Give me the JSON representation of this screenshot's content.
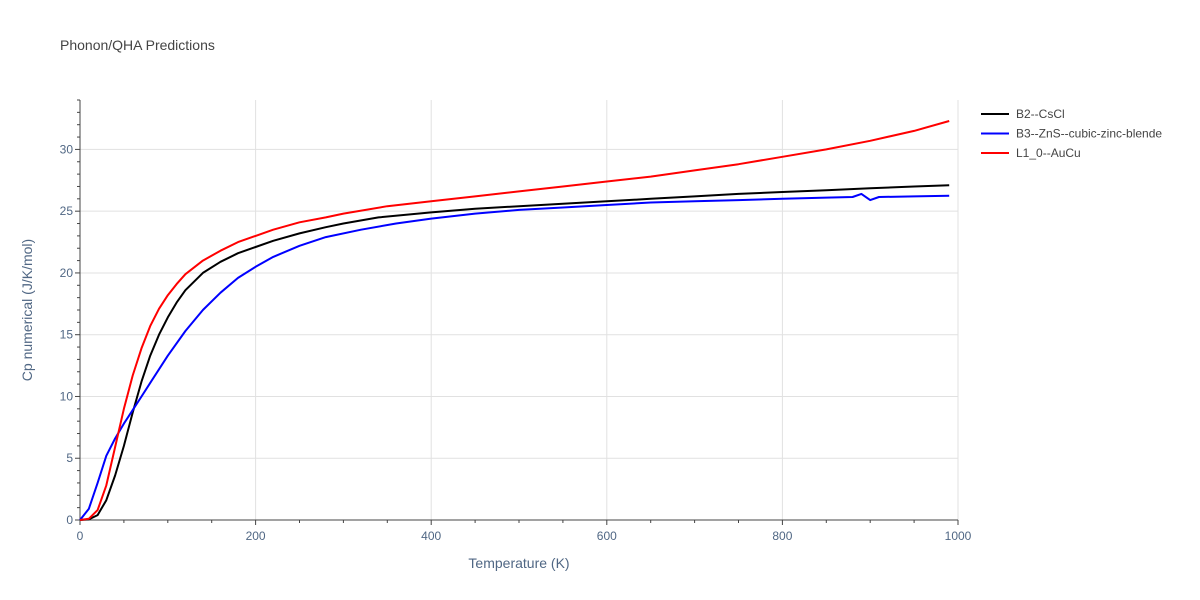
{
  "title": "Phonon/QHA Predictions",
  "chart_data": {
    "type": "line",
    "title": "Phonon/QHA Predictions",
    "xlabel": "Temperature (K)",
    "ylabel": "Cp numerical (J/K/mol)",
    "xlim": [
      0,
      1000
    ],
    "ylim": [
      0,
      34
    ],
    "xticks": [
      0,
      200,
      400,
      600,
      800,
      1000
    ],
    "yticks": [
      0,
      5,
      10,
      15,
      20,
      25,
      30
    ],
    "grid": true,
    "legend_position": "top-right",
    "series": [
      {
        "name": "B2--CsCl",
        "color": "#000000",
        "x": [
          0,
          10,
          20,
          30,
          40,
          50,
          60,
          70,
          80,
          90,
          100,
          110,
          120,
          140,
          160,
          180,
          200,
          220,
          250,
          280,
          300,
          340,
          400,
          450,
          500,
          550,
          600,
          650,
          700,
          750,
          800,
          850,
          900,
          950,
          990
        ],
        "y": [
          0,
          0.05,
          0.4,
          1.6,
          3.6,
          6.0,
          8.7,
          11.2,
          13.3,
          15.0,
          16.4,
          17.6,
          18.6,
          20.0,
          20.9,
          21.6,
          22.1,
          22.6,
          23.2,
          23.7,
          24.0,
          24.5,
          24.9,
          25.2,
          25.4,
          25.6,
          25.8,
          26.0,
          26.2,
          26.4,
          26.55,
          26.7,
          26.85,
          27.0,
          27.1
        ]
      },
      {
        "name": "B3--ZnS--cubic-zinc-blende",
        "color": "#0000ff",
        "x": [
          0,
          10,
          20,
          30,
          40,
          50,
          60,
          70,
          80,
          90,
          100,
          120,
          140,
          160,
          180,
          200,
          220,
          250,
          280,
          320,
          360,
          400,
          450,
          500,
          550,
          600,
          650,
          700,
          750,
          800,
          850,
          880,
          890,
          900,
          910,
          950,
          990
        ],
        "y": [
          0,
          0.9,
          3.0,
          5.2,
          6.6,
          7.8,
          8.9,
          10.0,
          11.1,
          12.2,
          13.3,
          15.3,
          17.0,
          18.4,
          19.6,
          20.5,
          21.3,
          22.2,
          22.9,
          23.5,
          24.0,
          24.4,
          24.8,
          25.1,
          25.3,
          25.5,
          25.7,
          25.8,
          25.9,
          26.0,
          26.1,
          26.15,
          26.4,
          25.9,
          26.15,
          26.2,
          26.25
        ]
      },
      {
        "name": "L1_0--AuCu",
        "color": "#ff0000",
        "x": [
          0,
          10,
          20,
          30,
          40,
          50,
          60,
          70,
          80,
          90,
          100,
          110,
          120,
          140,
          160,
          180,
          200,
          220,
          250,
          280,
          300,
          350,
          400,
          450,
          500,
          550,
          600,
          650,
          700,
          750,
          800,
          850,
          900,
          950,
          990
        ],
        "y": [
          0,
          0.1,
          0.8,
          2.8,
          5.9,
          9.0,
          11.7,
          13.9,
          15.7,
          17.1,
          18.2,
          19.1,
          19.9,
          21.0,
          21.8,
          22.5,
          23.0,
          23.5,
          24.1,
          24.5,
          24.8,
          25.4,
          25.8,
          26.2,
          26.6,
          27.0,
          27.4,
          27.8,
          28.3,
          28.8,
          29.4,
          30.0,
          30.7,
          31.5,
          32.3
        ]
      }
    ]
  }
}
